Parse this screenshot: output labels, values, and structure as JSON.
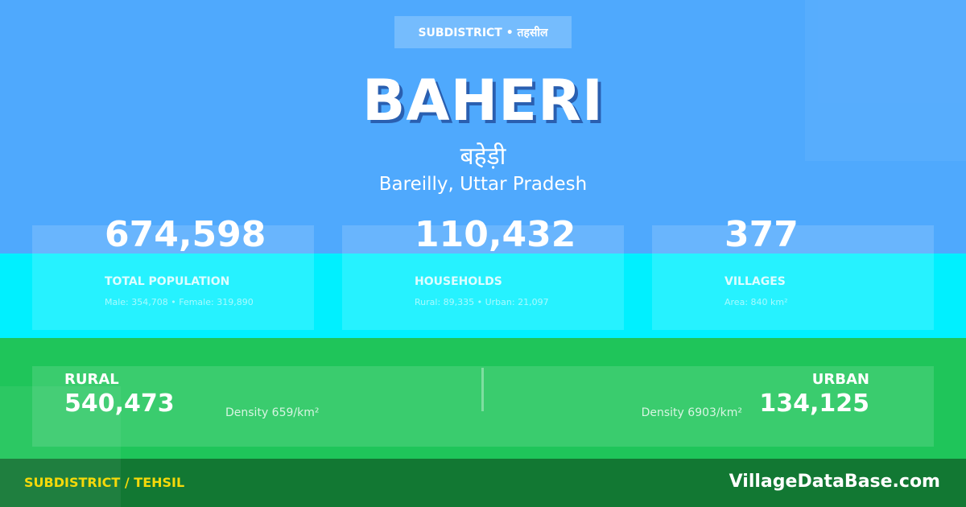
{
  "badge": "SUBDISTRICT • तहसील",
  "title": "BAHERI",
  "title_hindi": "बहेड़ी",
  "location": "Bareilly, Uttar Pradesh",
  "stats": [
    {
      "value": "674,598",
      "label": "TOTAL POPULATION",
      "sub": "Male: 354,708 • Female: 319,890"
    },
    {
      "value": "110,432",
      "label": "HOUSEHOLDS",
      "sub": "Rural: 89,335 • Urban: 21,097"
    },
    {
      "value": "377",
      "label": "VILLAGES",
      "sub": "Area: 840 km²"
    }
  ],
  "rural": {
    "label": "RURAL",
    "value": "540,473",
    "density": "Density 659/km²"
  },
  "urban": {
    "label": "URBAN",
    "value": "134,125",
    "density": "Density 6903/km²"
  },
  "footer": {
    "left": "SUBDISTRICT / TEHSIL",
    "right": "VillageDataBase.com"
  },
  "colors": {
    "top": "#4fa9fd",
    "cyan": "#00f0ff",
    "green": "#1fc55a",
    "footer": "#127833",
    "footer_label": "#f5d90a"
  }
}
